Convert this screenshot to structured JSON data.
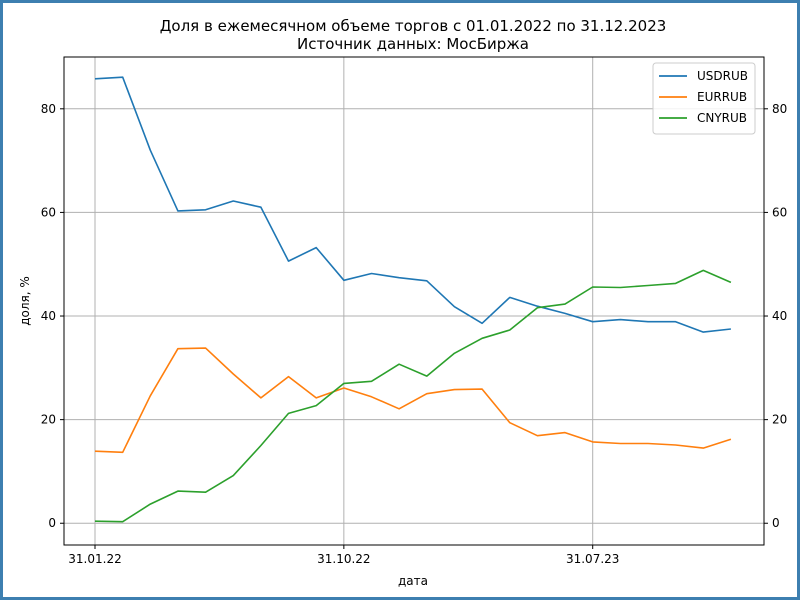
{
  "colors": {
    "frame": "#3d7fb0",
    "grid": "#b0b0b0"
  },
  "chart_data": {
    "type": "line",
    "title": "Доля в ежемесячном объеме торгов с 01.01.2022 по 31.12.2023",
    "subtitle": "Источник данных: МосБиржа",
    "xlabel": "дата",
    "ylabel": "доля, %",
    "x": [
      "31.01.22",
      "28.02.22",
      "31.03.22",
      "30.04.22",
      "31.05.22",
      "30.06.22",
      "31.07.22",
      "31.08.22",
      "30.09.22",
      "31.10.22",
      "30.11.22",
      "31.12.22",
      "31.01.23",
      "28.02.23",
      "31.03.23",
      "30.04.23",
      "31.05.23",
      "30.06.23",
      "31.07.23",
      "31.08.23",
      "30.09.23",
      "31.10.23",
      "30.11.23",
      "31.12.23"
    ],
    "xticks": [
      "31.01.22",
      "31.10.22",
      "31.07.23"
    ],
    "ylim": [
      -4.2,
      90
    ],
    "yticks": [
      0,
      20,
      40,
      60,
      80
    ],
    "right_axis": {
      "ticks": [
        0,
        20,
        40,
        60,
        80
      ]
    },
    "grid": true,
    "legend": "top-right",
    "series": [
      {
        "name": "USDRUB",
        "color": "#1f77b4",
        "values": [
          85.8,
          86.1,
          72.0,
          60.3,
          60.5,
          62.2,
          61.0,
          50.6,
          53.2,
          46.9,
          48.2,
          47.4,
          46.8,
          41.8,
          38.6,
          43.6,
          41.9,
          40.5,
          38.9,
          39.3,
          38.9,
          38.9,
          36.9,
          37.5
        ]
      },
      {
        "name": "EURRUB",
        "color": "#ff7f0e",
        "values": [
          13.9,
          13.7,
          24.6,
          33.7,
          33.8,
          28.8,
          24.2,
          28.3,
          24.2,
          26.1,
          24.4,
          22.1,
          25.0,
          25.8,
          25.9,
          19.4,
          16.9,
          17.5,
          15.7,
          15.4,
          15.4,
          15.1,
          14.5,
          16.2
        ]
      },
      {
        "name": "CNYRUB",
        "color": "#2ca02c",
        "values": [
          0.4,
          0.3,
          3.7,
          6.2,
          6.0,
          9.2,
          15.0,
          21.2,
          22.7,
          27.0,
          27.4,
          30.7,
          28.4,
          32.8,
          35.7,
          37.3,
          41.6,
          42.3,
          45.6,
          45.5,
          45.9,
          46.3,
          48.8,
          46.5
        ]
      }
    ]
  }
}
